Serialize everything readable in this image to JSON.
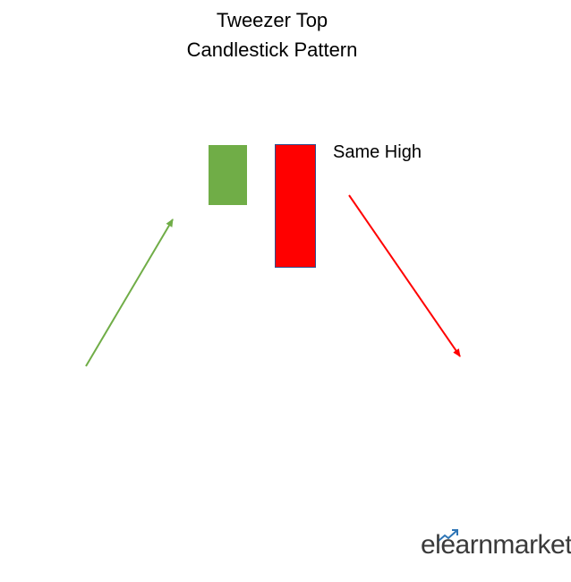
{
  "title": {
    "line1": "Tweezer Top",
    "line2": "Candlestick Pattern"
  },
  "annotation": {
    "same_high": "Same High"
  },
  "candles": [
    {
      "name": "bullish-candle",
      "color": "#70ad47"
    },
    {
      "name": "bearish-candle",
      "color": "#ff0000"
    }
  ],
  "arrows": {
    "uptrend_color": "#70ad47",
    "downtrend_color": "#ff0000"
  },
  "logo": {
    "text": "elearnmarkets"
  }
}
